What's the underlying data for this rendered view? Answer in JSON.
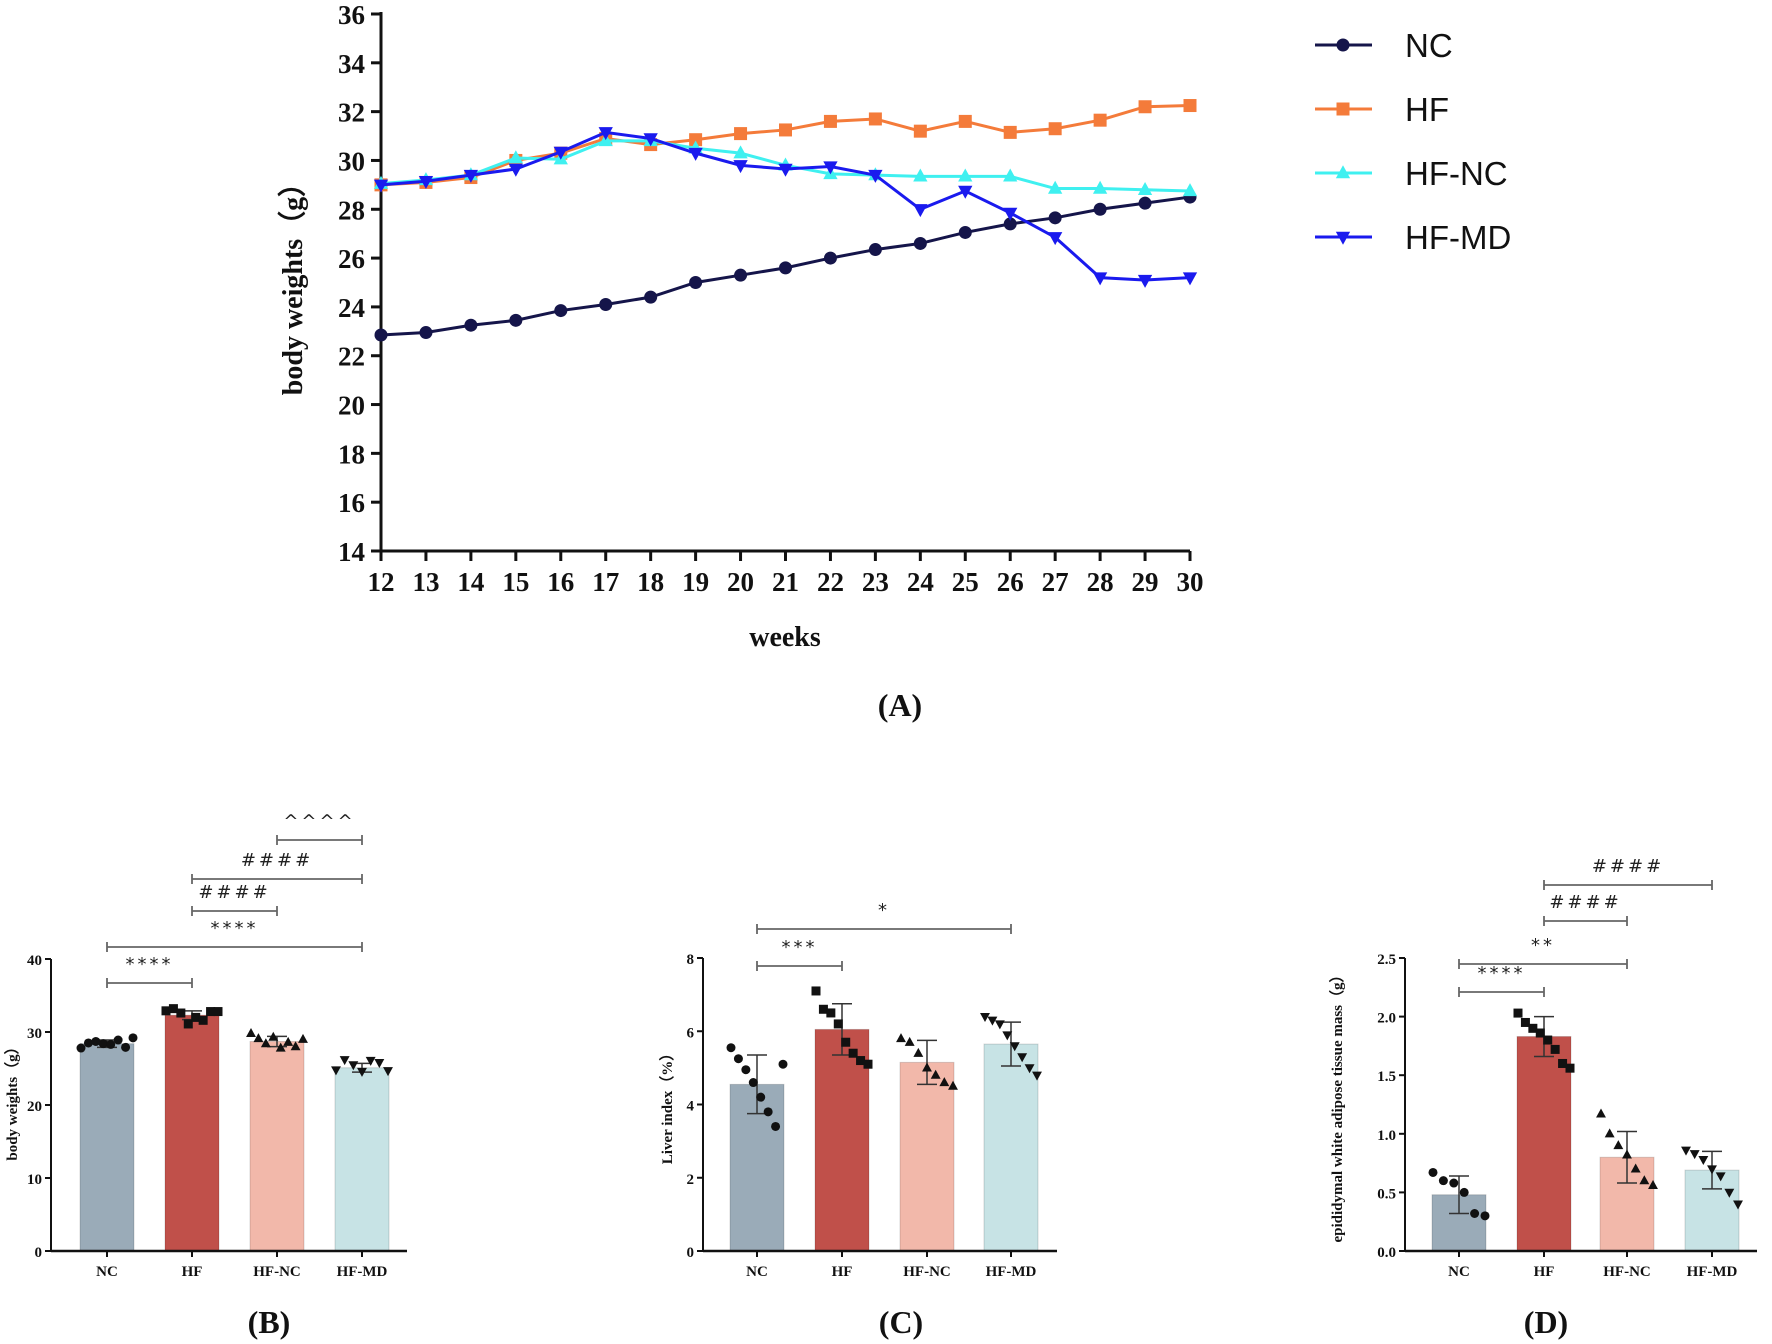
{
  "chart_data": [
    {
      "panel": "(A)",
      "type": "line",
      "xlabel": "weeks",
      "ylabel": "body weights（g）",
      "x": [
        12,
        13,
        14,
        15,
        16,
        17,
        18,
        19,
        20,
        21,
        22,
        23,
        24,
        25,
        26,
        27,
        28,
        29,
        30
      ],
      "ylim": [
        14,
        36
      ],
      "yticks": [
        14,
        16,
        18,
        20,
        22,
        24,
        26,
        28,
        30,
        32,
        34,
        36
      ],
      "grid": false,
      "legend": "right",
      "series": [
        {
          "name": "NC",
          "color": "#15154a",
          "marker": "circle",
          "values": [
            22.85,
            22.95,
            23.25,
            23.45,
            23.85,
            24.1,
            24.4,
            25.0,
            25.3,
            25.6,
            26.0,
            26.35,
            26.6,
            27.05,
            27.4,
            27.65,
            28.0,
            28.25,
            28.5
          ]
        },
        {
          "name": "HF",
          "color": "#f47b3a",
          "marker": "square",
          "values": [
            29.0,
            29.1,
            29.3,
            30.0,
            30.3,
            30.9,
            30.65,
            30.85,
            31.1,
            31.25,
            31.6,
            31.7,
            31.2,
            31.6,
            31.15,
            31.3,
            31.65,
            32.2,
            32.25
          ]
        },
        {
          "name": "HF-NC",
          "color": "#3ff0f0",
          "marker": "triangle-up",
          "values": [
            29.05,
            29.2,
            29.4,
            30.1,
            30.05,
            30.8,
            30.8,
            30.5,
            30.3,
            29.8,
            29.45,
            29.4,
            29.35,
            29.35,
            29.35,
            28.85,
            28.85,
            28.8,
            28.75
          ]
        },
        {
          "name": "HF-MD",
          "color": "#1a1aee",
          "marker": "triangle-down",
          "values": [
            29.0,
            29.15,
            29.4,
            29.65,
            30.35,
            31.15,
            30.9,
            30.3,
            29.8,
            29.65,
            29.75,
            29.4,
            28.0,
            28.75,
            27.85,
            26.85,
            25.2,
            25.1,
            25.2
          ]
        }
      ]
    },
    {
      "panel": "(B)",
      "type": "bar",
      "ylabel": "body weights（g）",
      "categories": [
        "NC",
        "HF",
        "HF-NC",
        "HF-MD"
      ],
      "colors": [
        "#9aabb8",
        "#c0504a",
        "#f2b8aa",
        "#c7e3e5"
      ],
      "markers": [
        "circle",
        "square",
        "triangle-up",
        "triangle-down"
      ],
      "values": [
        28.4,
        32.3,
        28.7,
        25.1
      ],
      "sd": [
        0.5,
        0.6,
        0.7,
        0.6
      ],
      "points": [
        [
          27.8,
          28.5,
          28.7,
          28.4,
          28.3,
          28.9,
          27.9,
          29.2
        ],
        [
          32.9,
          33.2,
          32.6,
          31.1,
          32.0,
          31.6,
          32.8,
          32.8
        ],
        [
          29.8,
          29.1,
          28.4,
          29.3,
          27.8,
          28.6,
          28.0,
          29.0
        ],
        [
          24.8,
          26.2,
          25.5,
          24.6,
          26.1,
          25.8,
          24.7
        ]
      ],
      "ylim": [
        0,
        40
      ],
      "yticks": [
        0,
        10,
        20,
        30,
        40
      ],
      "significance": [
        {
          "from": 0,
          "to": 1,
          "label": "****"
        },
        {
          "from": 0,
          "to": 3,
          "label": "****"
        },
        {
          "from": 1,
          "to": 2,
          "label": "####"
        },
        {
          "from": 1,
          "to": 3,
          "label": "####"
        },
        {
          "from": 2,
          "to": 3,
          "label": "^^^^"
        }
      ]
    },
    {
      "panel": "(C)",
      "type": "bar",
      "ylabel": "Liver index（%）",
      "categories": [
        "NC",
        "HF",
        "HF-NC",
        "HF-MD"
      ],
      "colors": [
        "#9aabb8",
        "#c0504a",
        "#f2b8aa",
        "#c7e3e5"
      ],
      "markers": [
        "circle",
        "square",
        "triangle-up",
        "triangle-down"
      ],
      "values": [
        4.55,
        6.05,
        5.15,
        5.65
      ],
      "sd": [
        0.8,
        0.7,
        0.6,
        0.6
      ],
      "points": [
        [
          5.55,
          5.25,
          4.95,
          4.6,
          4.2,
          3.8,
          3.4,
          5.1
        ],
        [
          7.1,
          6.6,
          6.5,
          6.2,
          5.7,
          5.4,
          5.2,
          5.1
        ],
        [
          5.8,
          5.7,
          5.4,
          5.0,
          4.8,
          4.6,
          4.5
        ],
        [
          6.4,
          6.3,
          6.2,
          5.9,
          5.6,
          5.3,
          5.0,
          4.8
        ]
      ],
      "ylim": [
        0,
        8
      ],
      "yticks": [
        0,
        2,
        4,
        6,
        8
      ],
      "significance": [
        {
          "from": 0,
          "to": 1,
          "label": "***"
        },
        {
          "from": 0,
          "to": 3,
          "label": "*"
        }
      ]
    },
    {
      "panel": "(D)",
      "type": "bar",
      "ylabel": "epididymal white adipose tissue mass（g）",
      "categories": [
        "NC",
        "HF",
        "HF-NC",
        "HF-MD"
      ],
      "colors": [
        "#9aabb8",
        "#c0504a",
        "#f2b8aa",
        "#c7e3e5"
      ],
      "markers": [
        "circle",
        "square",
        "triangle-up",
        "triangle-down"
      ],
      "values": [
        0.48,
        1.83,
        0.8,
        0.69
      ],
      "sd": [
        0.16,
        0.17,
        0.22,
        0.16
      ],
      "points": [
        [
          0.67,
          0.6,
          0.58,
          0.5,
          0.32,
          0.3
        ],
        [
          2.03,
          1.95,
          1.9,
          1.86,
          1.8,
          1.72,
          1.6,
          1.56
        ],
        [
          1.17,
          1.0,
          0.9,
          0.82,
          0.7,
          0.6,
          0.56
        ],
        [
          0.86,
          0.83,
          0.78,
          0.7,
          0.64,
          0.5,
          0.4
        ]
      ],
      "ylim": [
        0,
        2.5
      ],
      "yticks": [
        0.0,
        0.5,
        1.0,
        1.5,
        2.0,
        2.5
      ],
      "significance": [
        {
          "from": 0,
          "to": 1,
          "label": "****"
        },
        {
          "from": 0,
          "to": 2,
          "label": "**"
        },
        {
          "from": 1,
          "to": 2,
          "label": "####"
        },
        {
          "from": 1,
          "to": 3,
          "label": "####"
        }
      ]
    }
  ]
}
